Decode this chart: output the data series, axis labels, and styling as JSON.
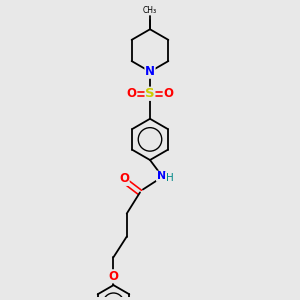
{
  "bg_color": "#e8e8e8",
  "line_color": "#000000",
  "bond_lw": 1.3,
  "fig_size": [
    3.0,
    3.0
  ],
  "dpi": 100,
  "xlim": [
    0,
    10
  ],
  "ylim": [
    0,
    10
  ]
}
